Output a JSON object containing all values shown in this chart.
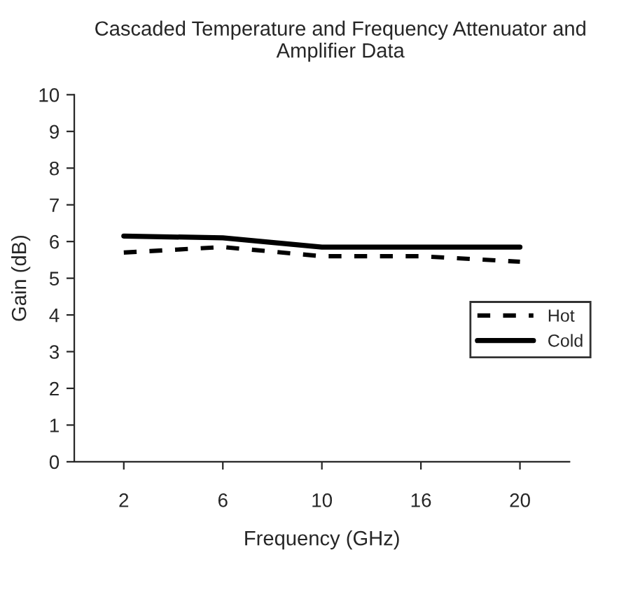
{
  "chart_data": {
    "type": "line",
    "title": "Cascaded Temperature and Frequency Attenuator and Amplifier Data",
    "xlabel": "Frequency (GHz)",
    "ylabel": "Gain (dB)",
    "categories": [
      "2",
      "6",
      "10",
      "16",
      "20"
    ],
    "series": [
      {
        "name": "Hot",
        "color": "#000000",
        "line_style": "dashed",
        "values": [
          5.7,
          5.85,
          5.6,
          5.6,
          5.45
        ]
      },
      {
        "name": "Cold",
        "color": "#000000",
        "line_style": "solid",
        "values": [
          6.15,
          6.1,
          5.85,
          5.85,
          5.85
        ]
      }
    ],
    "ylim": [
      0,
      10
    ],
    "yticks": [
      0,
      1,
      2,
      3,
      4,
      5,
      6,
      7,
      8,
      9,
      10
    ],
    "grid": false,
    "legend": "right",
    "marker": "none"
  }
}
